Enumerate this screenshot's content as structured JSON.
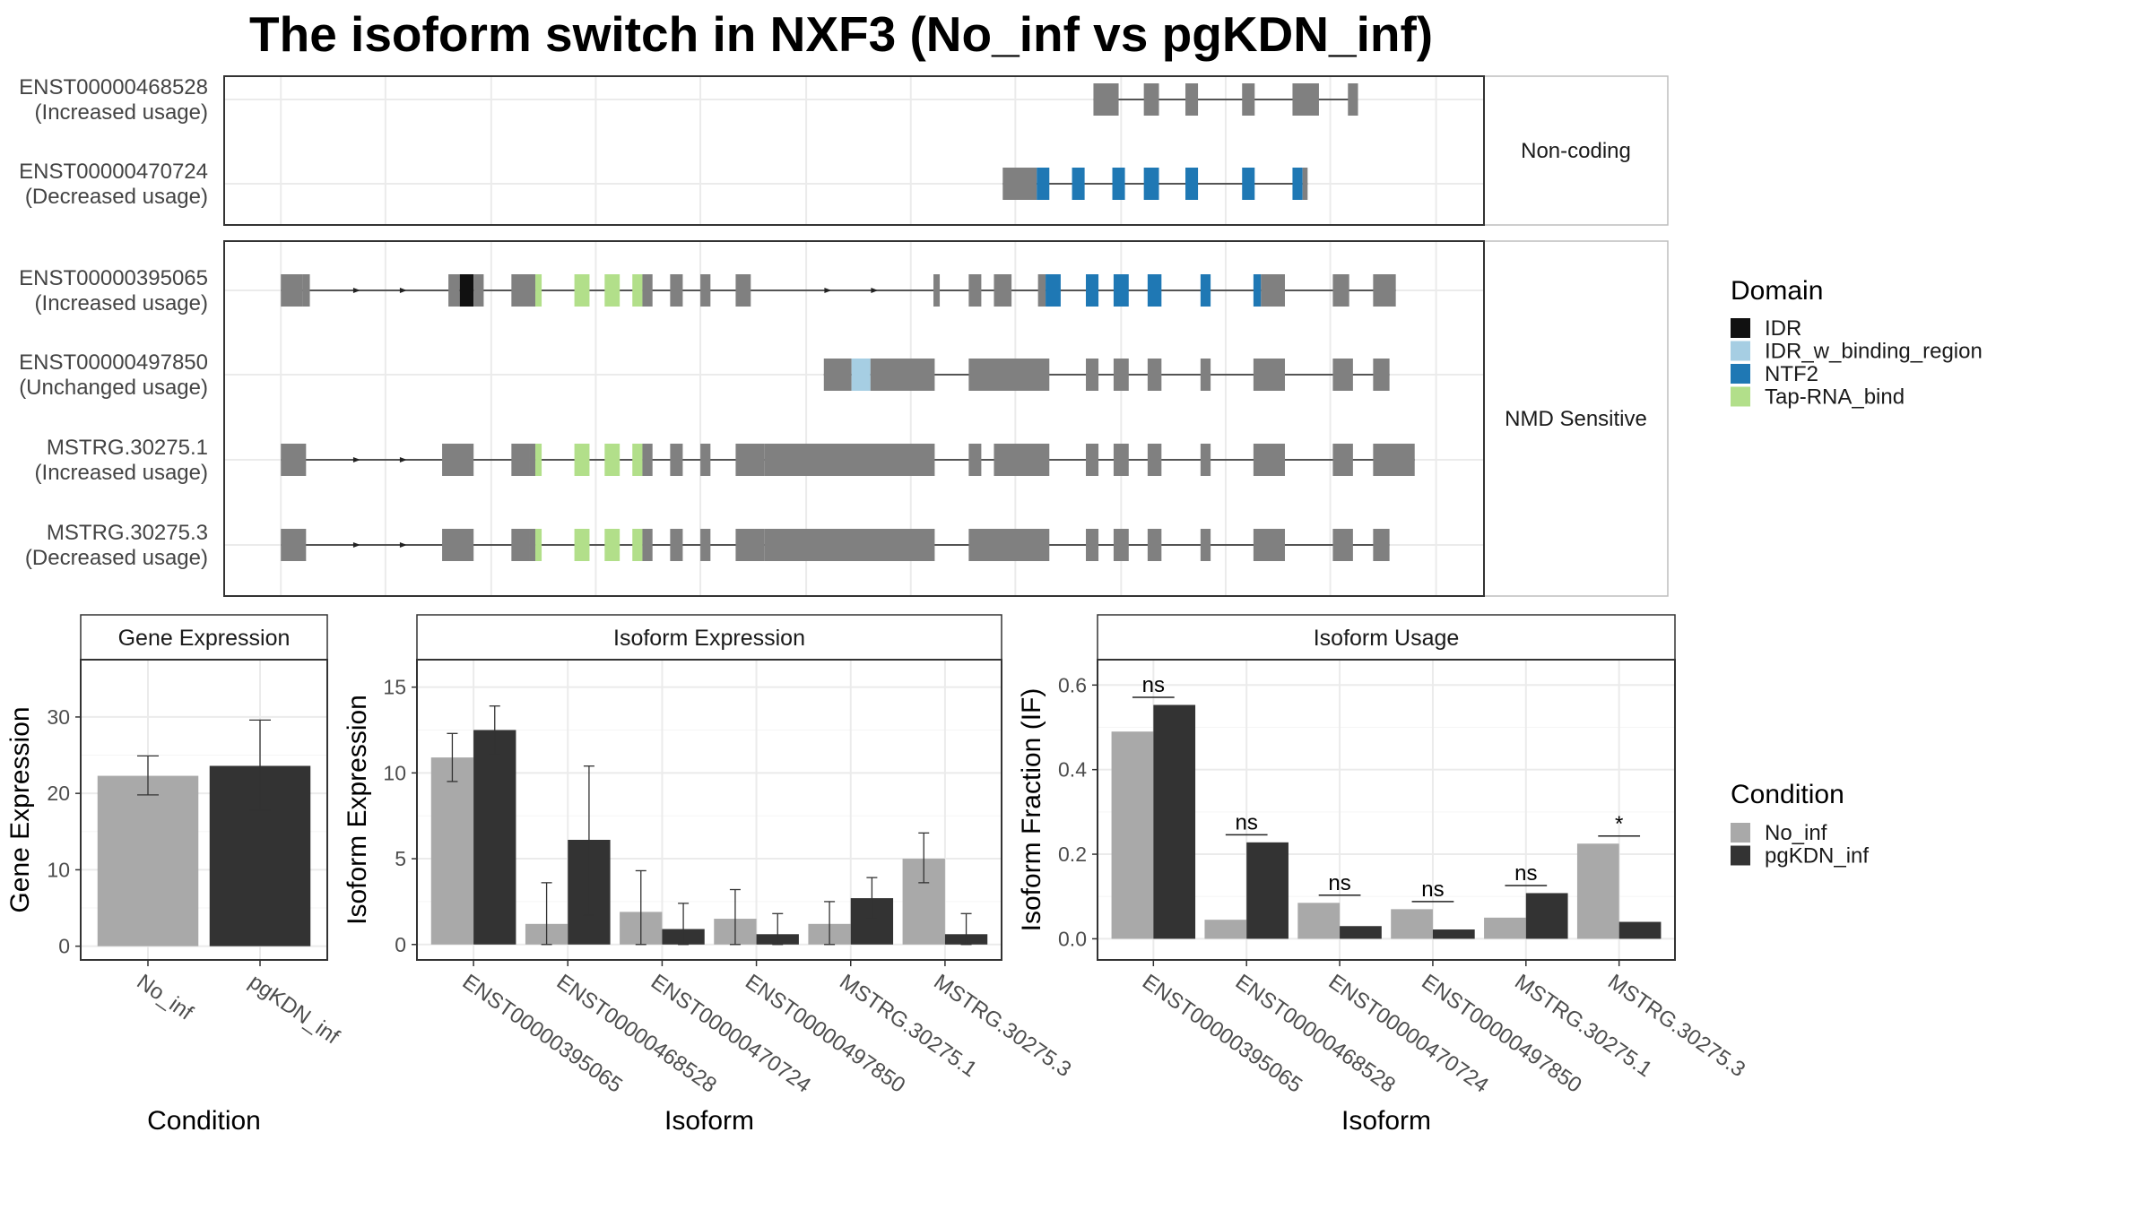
{
  "title": "The isoform switch in NXF3 (No_inf vs pgKDN_inf)",
  "colors": {
    "no_inf": "#a9a9a9",
    "pgkdn_inf": "#333333",
    "exon": "#808080",
    "IDR": "#111111",
    "IDR_w_binding_region": "#a6cee3",
    "NTF2": "#1f78b4",
    "Tap-RNA_bind": "#b2df8a"
  },
  "structure": {
    "groups": [
      {
        "label": "Non-coding",
        "isoforms": [
          {
            "id": "ENST00000468528",
            "usage": "(Increased usage)",
            "exons": [
              [
                0.69,
                0.71,
                "e"
              ],
              [
                0.73,
                0.742,
                "e"
              ],
              [
                0.763,
                0.773,
                "e"
              ],
              [
                0.808,
                0.818,
                "e"
              ],
              [
                0.848,
                0.869,
                "e"
              ],
              [
                0.892,
                0.9,
                "e"
              ]
            ]
          },
          {
            "id": "ENST00000470724",
            "usage": "(Decreased usage)",
            "exons": [
              [
                0.618,
                0.645,
                "e"
              ],
              [
                0.645,
                0.655,
                "NTF2"
              ],
              [
                0.673,
                0.683,
                "NTF2"
              ],
              [
                0.705,
                0.715,
                "NTF2"
              ],
              [
                0.73,
                0.742,
                "NTF2"
              ],
              [
                0.763,
                0.773,
                "NTF2"
              ],
              [
                0.808,
                0.818,
                "NTF2"
              ],
              [
                0.848,
                0.856,
                "NTF2"
              ],
              [
                0.856,
                0.86,
                "e"
              ]
            ]
          }
        ]
      },
      {
        "label": "NMD Sensitive",
        "isoforms": [
          {
            "id": "ENST00000395065",
            "usage": "(Increased usage)",
            "arrows": [
              0.106,
              0.143,
              0.48,
              0.517
            ],
            "exons": [
              [
                0.045,
                0.062,
                "e"
              ],
              [
                0.062,
                0.068,
                "e"
              ],
              [
                0.178,
                0.187,
                "e"
              ],
              [
                0.187,
                0.198,
                "IDR"
              ],
              [
                0.198,
                0.206,
                "e"
              ],
              [
                0.228,
                0.247,
                "e"
              ],
              [
                0.247,
                0.252,
                "Tap-RNA_bind"
              ],
              [
                0.278,
                0.29,
                "Tap-RNA_bind"
              ],
              [
                0.302,
                0.314,
                "Tap-RNA_bind"
              ],
              [
                0.324,
                0.332,
                "Tap-RNA_bind"
              ],
              [
                0.332,
                0.34,
                "e"
              ],
              [
                0.354,
                0.364,
                "e"
              ],
              [
                0.378,
                0.386,
                "e"
              ],
              [
                0.406,
                0.418,
                "e"
              ],
              [
                0.563,
                0.568,
                "e"
              ],
              [
                0.591,
                0.601,
                "e"
              ],
              [
                0.611,
                0.625,
                "e"
              ],
              [
                0.646,
                0.652,
                "e"
              ],
              [
                0.652,
                0.664,
                "NTF2"
              ],
              [
                0.684,
                0.694,
                "NTF2"
              ],
              [
                0.706,
                0.718,
                "NTF2"
              ],
              [
                0.733,
                0.744,
                "NTF2"
              ],
              [
                0.775,
                0.783,
                "NTF2"
              ],
              [
                0.817,
                0.823,
                "NTF2"
              ],
              [
                0.823,
                0.842,
                "e"
              ],
              [
                0.88,
                0.893,
                "e"
              ],
              [
                0.912,
                0.93,
                "e"
              ]
            ]
          },
          {
            "id": "ENST00000497850",
            "usage": "(Unchanged usage)",
            "exons": [
              [
                0.476,
                0.498,
                "e"
              ],
              [
                0.498,
                0.513,
                "IDR_w_binding_region"
              ],
              [
                0.513,
                0.564,
                "e"
              ],
              [
                0.591,
                0.655,
                "e"
              ],
              [
                0.684,
                0.694,
                "e"
              ],
              [
                0.706,
                0.718,
                "e"
              ],
              [
                0.733,
                0.744,
                "e"
              ],
              [
                0.775,
                0.783,
                "e"
              ],
              [
                0.817,
                0.842,
                "e"
              ],
              [
                0.88,
                0.896,
                "e"
              ],
              [
                0.912,
                0.925,
                "e"
              ]
            ]
          },
          {
            "id": "MSTRG.30275.1",
            "usage": "(Increased usage)",
            "arrows": [
              0.106,
              0.143
            ],
            "exons": [
              [
                0.045,
                0.065,
                "e"
              ],
              [
                0.173,
                0.198,
                "e"
              ],
              [
                0.228,
                0.242,
                "e"
              ],
              [
                0.242,
                0.247,
                "e"
              ],
              [
                0.247,
                0.252,
                "Tap-RNA_bind"
              ],
              [
                0.278,
                0.29,
                "Tap-RNA_bind"
              ],
              [
                0.302,
                0.314,
                "Tap-RNA_bind"
              ],
              [
                0.324,
                0.332,
                "Tap-RNA_bind"
              ],
              [
                0.332,
                0.34,
                "e"
              ],
              [
                0.354,
                0.364,
                "e"
              ],
              [
                0.378,
                0.386,
                "e"
              ],
              [
                0.406,
                0.429,
                "e"
              ],
              [
                0.429,
                0.564,
                "e"
              ],
              [
                0.591,
                0.601,
                "e"
              ],
              [
                0.611,
                0.655,
                "e"
              ],
              [
                0.684,
                0.694,
                "e"
              ],
              [
                0.706,
                0.718,
                "e"
              ],
              [
                0.733,
                0.744,
                "e"
              ],
              [
                0.775,
                0.783,
                "e"
              ],
              [
                0.817,
                0.842,
                "e"
              ],
              [
                0.88,
                0.896,
                "e"
              ],
              [
                0.912,
                0.945,
                "e"
              ]
            ]
          },
          {
            "id": "MSTRG.30275.3",
            "usage": "(Decreased usage)",
            "arrows": [
              0.106,
              0.143
            ],
            "exons": [
              [
                0.045,
                0.065,
                "e"
              ],
              [
                0.173,
                0.198,
                "e"
              ],
              [
                0.228,
                0.242,
                "e"
              ],
              [
                0.242,
                0.247,
                "e"
              ],
              [
                0.247,
                0.252,
                "Tap-RNA_bind"
              ],
              [
                0.278,
                0.29,
                "Tap-RNA_bind"
              ],
              [
                0.302,
                0.314,
                "Tap-RNA_bind"
              ],
              [
                0.324,
                0.332,
                "Tap-RNA_bind"
              ],
              [
                0.332,
                0.34,
                "e"
              ],
              [
                0.354,
                0.364,
                "e"
              ],
              [
                0.378,
                0.386,
                "e"
              ],
              [
                0.406,
                0.429,
                "e"
              ],
              [
                0.429,
                0.564,
                "e"
              ],
              [
                0.591,
                0.655,
                "e"
              ],
              [
                0.684,
                0.694,
                "e"
              ],
              [
                0.706,
                0.718,
                "e"
              ],
              [
                0.733,
                0.744,
                "e"
              ],
              [
                0.775,
                0.783,
                "e"
              ],
              [
                0.817,
                0.842,
                "e"
              ],
              [
                0.88,
                0.896,
                "e"
              ],
              [
                0.912,
                0.925,
                "e"
              ]
            ]
          }
        ]
      }
    ]
  },
  "legend_domain": {
    "title": "Domain",
    "items": [
      "IDR",
      "IDR_w_binding_region",
      "NTF2",
      "Tap-RNA_bind"
    ]
  },
  "legend_condition": {
    "title": "Condition",
    "items": [
      "No_inf",
      "pgKDN_inf"
    ]
  },
  "chart_data": [
    {
      "type": "bar",
      "title": "Gene Expression",
      "xlabel": "Condition",
      "ylabel": "Gene Expression",
      "ylim": [
        -1.8,
        37.5
      ],
      "yticks": [
        0,
        10,
        20,
        30
      ],
      "categories": [
        "No_inf",
        "pgKDN_inf"
      ],
      "values": [
        22.3,
        23.6
      ],
      "error_low": [
        19.8,
        17.8
      ],
      "error_high": [
        24.9,
        29.6
      ]
    },
    {
      "type": "bar",
      "title": "Isoform Expression",
      "xlabel": "Isoform",
      "ylabel": "Isoform Expression",
      "ylim": [
        -0.9,
        16.6
      ],
      "yticks": [
        0,
        5,
        10,
        15
      ],
      "categories": [
        "ENST00000395065",
        "ENST00000468528",
        "ENST00000470724",
        "ENST00000497850",
        "MSTRG.30275.1",
        "MSTRG.30275.3"
      ],
      "series": [
        {
          "name": "No_inf",
          "values": [
            10.9,
            1.2,
            1.9,
            1.5,
            1.2,
            5.0
          ],
          "error_low": [
            9.5,
            0.0,
            0.0,
            0.0,
            0.0,
            3.6
          ],
          "error_high": [
            12.3,
            3.6,
            4.3,
            3.2,
            2.5,
            6.5
          ]
        },
        {
          "name": "pgKDN_inf",
          "values": [
            12.5,
            6.1,
            0.9,
            0.6,
            2.7,
            0.6
          ],
          "error_low": [
            11.1,
            1.7,
            0.0,
            0.0,
            1.5,
            0.0
          ],
          "error_high": [
            13.9,
            10.4,
            2.4,
            1.8,
            3.9,
            1.8
          ]
        }
      ]
    },
    {
      "type": "bar",
      "title": "Isoform Usage",
      "xlabel": "Isoform",
      "ylabel": "Isoform Fraction (IF)",
      "ylim": [
        -0.05,
        0.66
      ],
      "yticks": [
        0.0,
        0.2,
        0.4,
        0.6
      ],
      "ytick_labels": [
        "0.0",
        "0.2",
        "0.4",
        "0.6"
      ],
      "categories": [
        "ENST00000395065",
        "ENST00000468528",
        "ENST00000470724",
        "ENST00000497850",
        "MSTRG.30275.1",
        "MSTRG.30275.3"
      ],
      "series": [
        {
          "name": "No_inf",
          "values": [
            0.49,
            0.045,
            0.085,
            0.07,
            0.05,
            0.225
          ]
        },
        {
          "name": "pgKDN_inf",
          "values": [
            0.553,
            0.228,
            0.03,
            0.022,
            0.108,
            0.04
          ]
        }
      ],
      "significance": [
        "ns",
        "ns",
        "ns",
        "ns",
        "ns",
        "*"
      ]
    }
  ]
}
